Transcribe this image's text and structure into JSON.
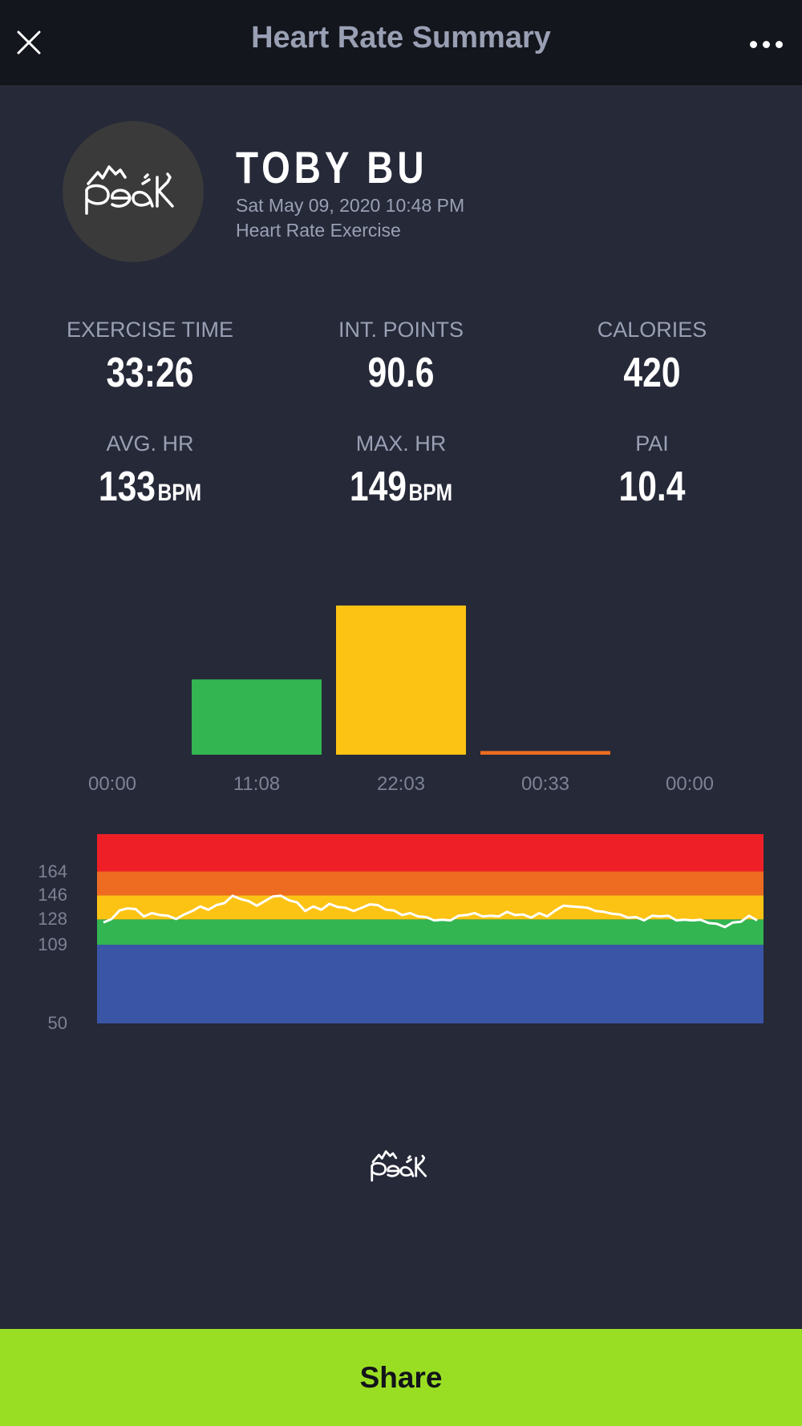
{
  "header": {
    "title": "Heart Rate Summary",
    "close_icon": "close-icon",
    "more_icon": "more-horizontal-icon"
  },
  "user": {
    "logo_text": "peak",
    "name": "TOBY BU",
    "date": "Sat May 09, 2020 10:48 PM",
    "exercise_type": "Heart Rate Exercise"
  },
  "stats": {
    "exercise_time": {
      "label": "EXERCISE TIME",
      "value": "33:26"
    },
    "int_points": {
      "label": "INT. POINTS",
      "value": "90.6"
    },
    "calories": {
      "label": "CALORIES",
      "value": "420"
    },
    "avg_hr": {
      "label": "AVG. HR",
      "value": "133",
      "unit": "BPM"
    },
    "max_hr": {
      "label": "MAX. HR",
      "value": "149",
      "unit": "BPM"
    },
    "pai": {
      "label": "PAI",
      "value": "10.4"
    }
  },
  "chart_data": [
    {
      "type": "bar",
      "categories": [
        "00:00",
        "11:08",
        "22:03",
        "00:33",
        "00:00"
      ],
      "values_minutes": [
        0,
        11.13,
        22.05,
        0.55,
        0
      ],
      "colors": [
        "#3d55a6",
        "#33b552",
        "#fcc314",
        "#ee6c22",
        "#ee1f26"
      ]
    },
    {
      "type": "line",
      "yticks": [
        50,
        109,
        128,
        146,
        164
      ],
      "ylim": [
        50,
        192
      ],
      "zones": [
        {
          "from": 50,
          "to": 109,
          "color": "#3a55a6"
        },
        {
          "from": 109,
          "to": 128,
          "color": "#33b552"
        },
        {
          "from": 128,
          "to": 146,
          "color": "#fcc314"
        },
        {
          "from": 146,
          "to": 164,
          "color": "#ee6c22"
        },
        {
          "from": 164,
          "to": 192,
          "color": "#ee1f26"
        }
      ],
      "line_color": "#ffffff",
      "duration_min": 33.4,
      "series_hr": [
        125,
        129,
        134,
        137,
        135,
        131,
        132,
        132,
        130,
        129,
        131,
        135,
        137,
        136,
        138,
        141,
        145,
        144,
        141,
        139,
        141,
        146,
        145,
        143,
        140,
        135,
        137,
        136,
        139,
        138,
        136,
        135,
        136,
        140,
        138,
        136,
        134,
        132,
        132,
        131,
        129,
        128,
        127,
        128,
        130,
        132,
        132,
        131,
        130,
        131,
        133,
        132,
        131,
        130,
        132,
        131,
        134,
        139,
        137,
        138,
        136,
        135,
        133,
        133,
        131,
        130,
        129,
        128,
        130,
        131,
        130,
        128,
        127,
        128,
        127,
        126,
        124,
        123,
        125,
        127,
        130,
        128
      ]
    }
  ],
  "footer": {
    "logo_text": "peak"
  },
  "share": {
    "label": "Share"
  }
}
